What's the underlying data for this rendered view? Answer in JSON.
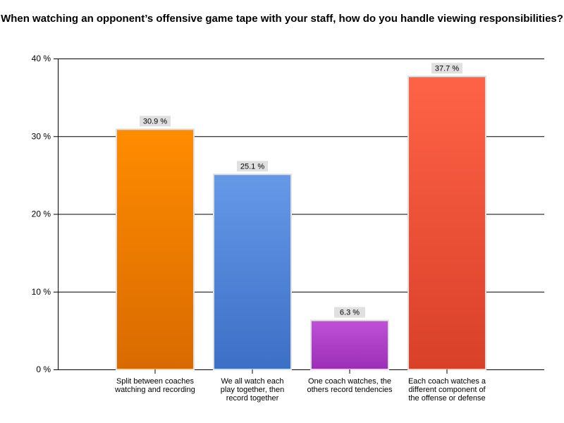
{
  "chart_data": {
    "type": "bar",
    "title": "When watching an opponent’s offensive game tape with your staff, how do you handle viewing responsibilities?",
    "categories": [
      [
        "Split between coaches",
        "watching and recording"
      ],
      [
        "We all watch each",
        "play together, then",
        "record together"
      ],
      [
        "One coach watches, the",
        "others record tendencies"
      ],
      [
        "Each coach watches a",
        "different component of",
        "the offense or defense"
      ]
    ],
    "values": [
      30.9,
      25.1,
      6.3,
      37.7
    ],
    "data_labels": [
      "30.9 %",
      "25.1 %",
      "6.3 %",
      "37.7 %"
    ],
    "ylim": [
      0,
      40
    ],
    "yticks": [
      0,
      10,
      20,
      30,
      40
    ],
    "ytick_labels": [
      "0 %",
      "10 %",
      "20 %",
      "30 %",
      "40 %"
    ],
    "grid": true,
    "colors": [
      [
        "#ff8c00",
        "#d96a00"
      ],
      [
        "#6699e8",
        "#3c6fc6"
      ],
      [
        "#c050d8",
        "#9a2fb6"
      ],
      [
        "#ff6347",
        "#d84028"
      ]
    ]
  }
}
